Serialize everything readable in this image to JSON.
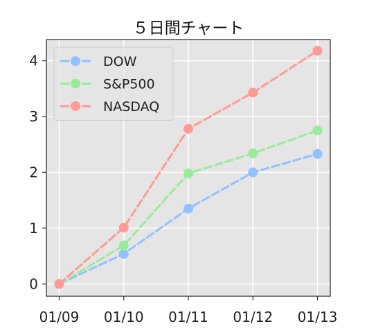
{
  "chart_data": {
    "type": "line",
    "title": "５日間チャート",
    "xlabel": "",
    "ylabel": "",
    "categories": [
      "01/09",
      "01/10",
      "01/11",
      "01/12",
      "01/13"
    ],
    "ylim": [
      -0.22,
      4.38
    ],
    "yticks": [
      0,
      1,
      2,
      3,
      4
    ],
    "grid": true,
    "legend_position": "top-left",
    "background_color": "#e5e5e5",
    "series": [
      {
        "name": "DOW",
        "color": "#92c1ff",
        "values": [
          0,
          0.54,
          1.35,
          2.0,
          2.33
        ]
      },
      {
        "name": "S&P500",
        "color": "#99eb99",
        "values": [
          0,
          0.69,
          1.98,
          2.34,
          2.75
        ]
      },
      {
        "name": "NASDAQ",
        "color": "#ff9a95",
        "values": [
          0,
          1.01,
          2.78,
          3.43,
          4.18
        ]
      }
    ]
  }
}
